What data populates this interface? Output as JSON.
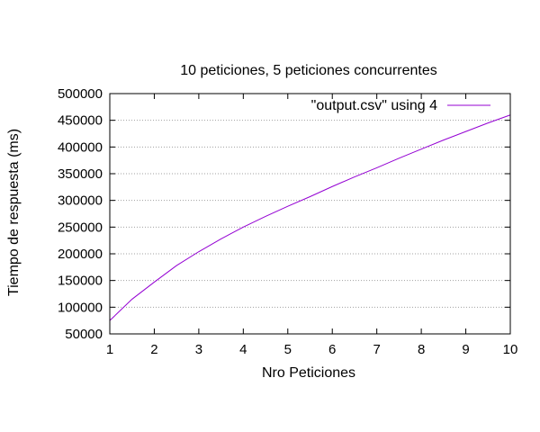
{
  "chart_data": {
    "type": "line",
    "title": "10 peticiones, 5 peticiones concurrentes",
    "xlabel": "Nro Peticiones",
    "ylabel": "Tiempo de respuesta (ms)",
    "xlim": [
      1,
      10
    ],
    "ylim": [
      50000,
      500000
    ],
    "xticks": [
      1,
      2,
      3,
      4,
      5,
      6,
      7,
      8,
      9,
      10
    ],
    "yticks": [
      50000,
      100000,
      150000,
      200000,
      250000,
      300000,
      350000,
      400000,
      450000,
      500000
    ],
    "grid": true,
    "legend_position": "top-right",
    "series": [
      {
        "name": "\"output.csv\" using 4",
        "color": "#9400d3",
        "x": [
          1,
          1.5,
          2,
          2.5,
          3,
          3.5,
          4,
          4.5,
          5,
          5.5,
          6,
          6.5,
          7,
          7.5,
          8,
          8.5,
          9,
          9.5,
          10
        ],
        "y": [
          75000,
          115000,
          147000,
          178000,
          204000,
          228000,
          250000,
          270000,
          289000,
          307000,
          326000,
          344000,
          361000,
          379000,
          396000,
          413000,
          429000,
          445000,
          460000
        ]
      }
    ]
  }
}
